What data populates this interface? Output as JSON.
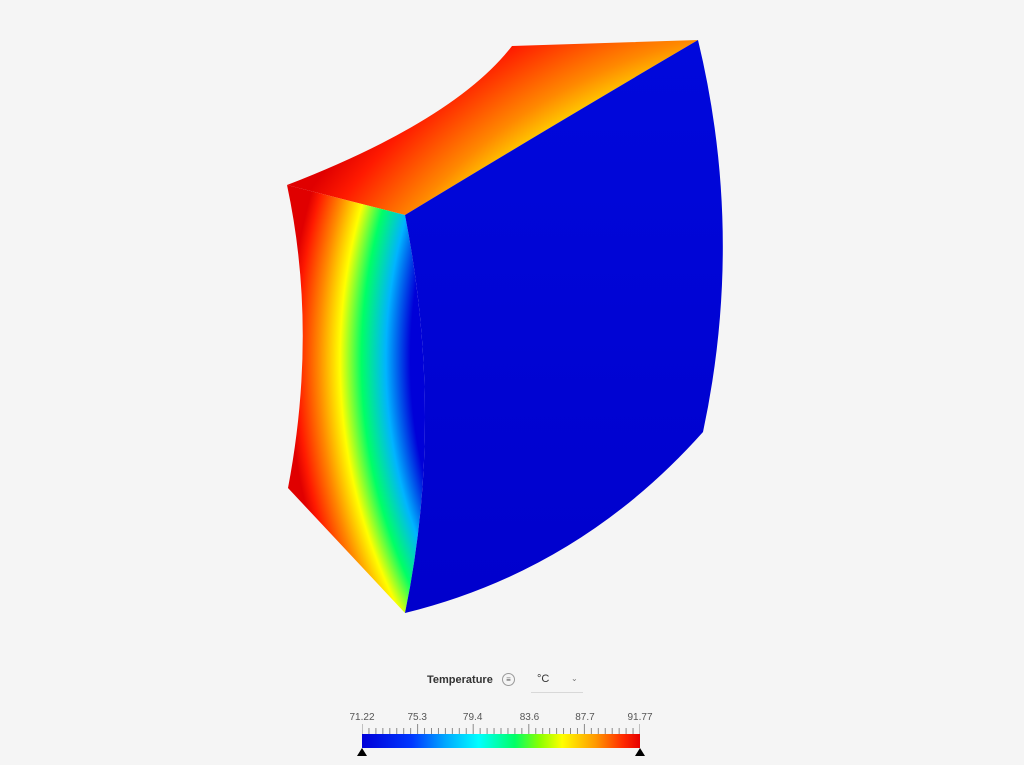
{
  "legend": {
    "field_name": "Temperature",
    "menu_icon": "hamburger-icon",
    "unit": "°C",
    "min": 71.22,
    "max": 91.77,
    "tick_labels": [
      "71.22",
      "75.3",
      "79.4",
      "83.6",
      "87.7",
      "91.77"
    ],
    "tick_values": [
      71.22,
      75.3,
      79.4,
      83.6,
      87.7,
      91.77
    ]
  },
  "colors": {
    "low": "#0000d8",
    "high": "#e60000",
    "background": "#f5f5f5"
  }
}
